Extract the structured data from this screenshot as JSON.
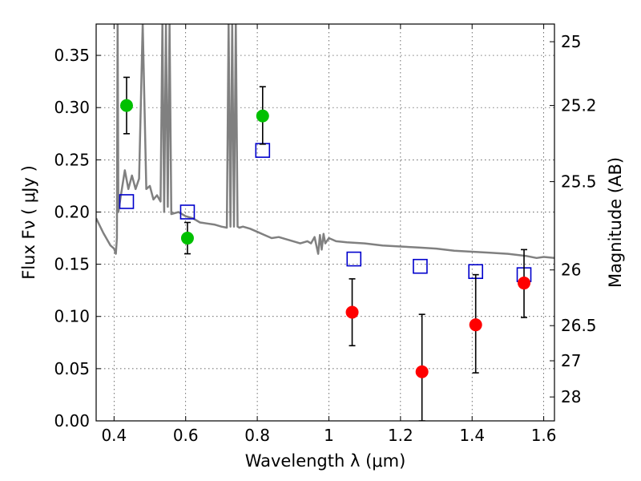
{
  "chart_data": {
    "type": "scatter",
    "xlabel": "Wavelength  λ (μm)",
    "ylabel": "Flux  Fν  ( μJy )",
    "right_ylabel": "Magnitude (AB)",
    "xlim": [
      0.35,
      1.63
    ],
    "ylim": [
      0.0,
      0.38
    ],
    "x_ticks": [
      {
        "value": 0.4,
        "label": "0.4"
      },
      {
        "value": 0.6,
        "label": "0.6"
      },
      {
        "value": 0.8,
        "label": "0.8"
      },
      {
        "value": 1.0,
        "label": "1"
      },
      {
        "value": 1.2,
        "label": "1.2"
      },
      {
        "value": 1.4,
        "label": "1.4"
      },
      {
        "value": 1.6,
        "label": "1.6"
      }
    ],
    "y_ticks": [
      {
        "value": 0.0,
        "label": "0.00"
      },
      {
        "value": 0.05,
        "label": "0.05"
      },
      {
        "value": 0.1,
        "label": "0.10"
      },
      {
        "value": 0.15,
        "label": "0.15"
      },
      {
        "value": 0.2,
        "label": "0.20"
      },
      {
        "value": 0.25,
        "label": "0.25"
      },
      {
        "value": 0.3,
        "label": "0.30"
      },
      {
        "value": 0.35,
        "label": "0.35"
      }
    ],
    "right_ticks": [
      {
        "value": 25,
        "label": "25"
      },
      {
        "value": 25.2,
        "label": "25.2"
      },
      {
        "value": 25.5,
        "label": "25.5"
      },
      {
        "value": 26,
        "label": "26"
      },
      {
        "value": 26.5,
        "label": "26.5"
      },
      {
        "value": 27,
        "label": "27"
      },
      {
        "value": 28,
        "label": "28"
      }
    ],
    "grid": true,
    "colors": {
      "model": "#808080",
      "green": "#00c000",
      "red": "#ff0000",
      "square": "#0000cc",
      "errorbar": "#000000"
    },
    "series": [
      {
        "name": "model spectrum",
        "kind": "line",
        "x": [
          0.35,
          0.37,
          0.39,
          0.4,
          0.405,
          0.408,
          0.41,
          0.412,
          0.42,
          0.43,
          0.44,
          0.45,
          0.46,
          0.47,
          0.48,
          0.49,
          0.5,
          0.51,
          0.52,
          0.53,
          0.535,
          0.54,
          0.545,
          0.55,
          0.555,
          0.56,
          0.58,
          0.6,
          0.62,
          0.64,
          0.66,
          0.68,
          0.7,
          0.715,
          0.72,
          0.725,
          0.73,
          0.735,
          0.74,
          0.745,
          0.75,
          0.76,
          0.78,
          0.8,
          0.82,
          0.84,
          0.86,
          0.88,
          0.9,
          0.92,
          0.94,
          0.95,
          0.96,
          0.97,
          0.975,
          0.98,
          0.985,
          0.99,
          1.0,
          1.02,
          1.05,
          1.1,
          1.15,
          1.2,
          1.25,
          1.3,
          1.35,
          1.4,
          1.45,
          1.5,
          1.55,
          1.58,
          1.6,
          1.63
        ],
        "y": [
          0.194,
          0.18,
          0.168,
          0.165,
          0.16,
          0.175,
          0.38,
          0.2,
          0.218,
          0.24,
          0.222,
          0.235,
          0.222,
          0.232,
          0.38,
          0.222,
          0.225,
          0.212,
          0.216,
          0.21,
          0.38,
          0.2,
          0.38,
          0.205,
          0.38,
          0.198,
          0.2,
          0.196,
          0.194,
          0.19,
          0.189,
          0.188,
          0.186,
          0.185,
          0.38,
          0.186,
          0.38,
          0.186,
          0.38,
          0.186,
          0.185,
          0.186,
          0.184,
          0.181,
          0.178,
          0.175,
          0.176,
          0.174,
          0.172,
          0.17,
          0.172,
          0.17,
          0.176,
          0.16,
          0.178,
          0.164,
          0.179,
          0.17,
          0.175,
          0.172,
          0.171,
          0.17,
          0.168,
          0.167,
          0.166,
          0.165,
          0.163,
          0.162,
          0.161,
          0.16,
          0.158,
          0.156,
          0.157,
          0.156
        ]
      },
      {
        "name": "green points",
        "kind": "points",
        "points": [
          {
            "x": 0.435,
            "y": 0.302,
            "err_lo": 0.275,
            "err_hi": 0.329
          },
          {
            "x": 0.605,
            "y": 0.175,
            "err_lo": 0.16,
            "err_hi": 0.19
          },
          {
            "x": 0.815,
            "y": 0.292,
            "err_lo": 0.265,
            "err_hi": 0.32
          }
        ]
      },
      {
        "name": "red points",
        "kind": "points",
        "points": [
          {
            "x": 1.065,
            "y": 0.104,
            "err_lo": 0.072,
            "err_hi": 0.136
          },
          {
            "x": 1.26,
            "y": 0.047,
            "err_lo": 0.0,
            "err_hi": 0.102
          },
          {
            "x": 1.41,
            "y": 0.092,
            "err_lo": 0.046,
            "err_hi": 0.14
          },
          {
            "x": 1.545,
            "y": 0.132,
            "err_lo": 0.099,
            "err_hi": 0.164
          }
        ]
      },
      {
        "name": "model photometry",
        "kind": "squares",
        "points": [
          {
            "x": 0.435,
            "y": 0.21
          },
          {
            "x": 0.605,
            "y": 0.2
          },
          {
            "x": 0.815,
            "y": 0.259
          },
          {
            "x": 1.07,
            "y": 0.155
          },
          {
            "x": 1.255,
            "y": 0.148
          },
          {
            "x": 1.41,
            "y": 0.143
          },
          {
            "x": 1.545,
            "y": 0.14
          }
        ]
      }
    ]
  }
}
